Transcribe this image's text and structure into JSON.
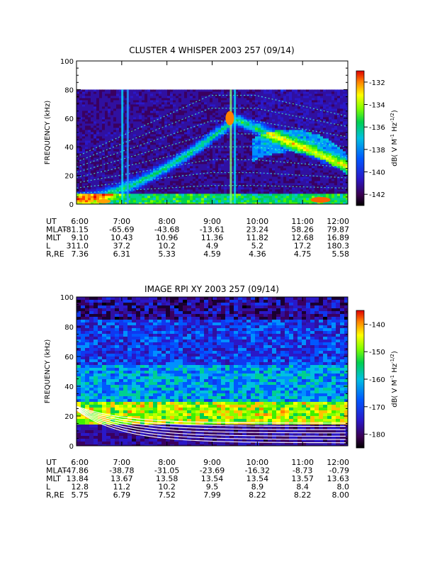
{
  "chart_data": [
    {
      "type": "heatmap",
      "title": "CLUSTER 4 WHISPER 2003 257 (09/14)",
      "ylabel": "FREQUENCY (kHz)",
      "ylim": [
        0,
        100
      ],
      "yticks": [
        "0",
        "20",
        "40",
        "60",
        "80",
        "100"
      ],
      "xticks": [
        "6:00",
        "7:00",
        "8:00",
        "9:00",
        "10:00",
        "11:00",
        "12:00"
      ],
      "colorbar": {
        "label": "dB( V M^-1 Hz^-1/2 )",
        "ticks": [
          "-132",
          "-134",
          "-136",
          "-138",
          "-140",
          "-142"
        ],
        "range": [
          -143,
          -131
        ]
      },
      "data_top_khz": 80,
      "ephemeris": [
        {
          "label": "UT",
          "values": [
            "6:00",
            "7:00",
            "8:00",
            "9:00",
            "10:00",
            "11:00",
            "12:00"
          ]
        },
        {
          "label": "MLAT",
          "values": [
            "-81.15",
            "-65.69",
            "-43.68",
            "-13.61",
            "23.24",
            "58.26",
            "79.87"
          ]
        },
        {
          "label": "MLT",
          "values": [
            "9.10",
            "10.43",
            "10.96",
            "11.36",
            "11.82",
            "12.68",
            "16.89"
          ]
        },
        {
          "label": "L",
          "values": [
            "311.0",
            "37.2",
            "10.2",
            "4.9",
            "5.2",
            "17.2",
            "180.3"
          ]
        },
        {
          "label": "R,RE",
          "values": [
            "7.36",
            "6.31",
            "5.33",
            "4.59",
            "4.36",
            "4.75",
            "5.58"
          ]
        }
      ]
    },
    {
      "type": "heatmap",
      "title": "IMAGE RPI XY 2003 257 (09/14)",
      "ylabel": "FREQUENCY (kHz)",
      "ylim": [
        0,
        100
      ],
      "yticks": [
        "0",
        "20",
        "40",
        "60",
        "80",
        "100"
      ],
      "xticks": [
        "6:00",
        "7:00",
        "8:00",
        "9:00",
        "10:00",
        "11:00",
        "12:00"
      ],
      "colorbar": {
        "label": "dB( V M^-1 Hz^-1/2 )",
        "ticks": [
          "-140",
          "-150",
          "-160",
          "-170",
          "-180"
        ],
        "range": [
          -185,
          -135
        ]
      },
      "ephemeris": [
        {
          "label": "UT",
          "values": [
            "6:00",
            "7:00",
            "8:00",
            "9:00",
            "10:00",
            "11:00",
            "12:00"
          ]
        },
        {
          "label": "MLAT",
          "values": [
            "-47.86",
            "-38.78",
            "-31.05",
            "-23.69",
            "-16.32",
            "-8.73",
            "-0.79"
          ]
        },
        {
          "label": "MLT",
          "values": [
            "13.84",
            "13.67",
            "13.58",
            "13.54",
            "13.54",
            "13.57",
            "13.63"
          ]
        },
        {
          "label": "L",
          "values": [
            "12.8",
            "11.2",
            "10.2",
            "9.5",
            "8.9",
            "8.4",
            "8.0"
          ]
        },
        {
          "label": "R,RE",
          "values": [
            "5.75",
            "6.79",
            "7.52",
            "7.99",
            "8.22",
            "8.22",
            "8.00"
          ]
        }
      ]
    }
  ]
}
